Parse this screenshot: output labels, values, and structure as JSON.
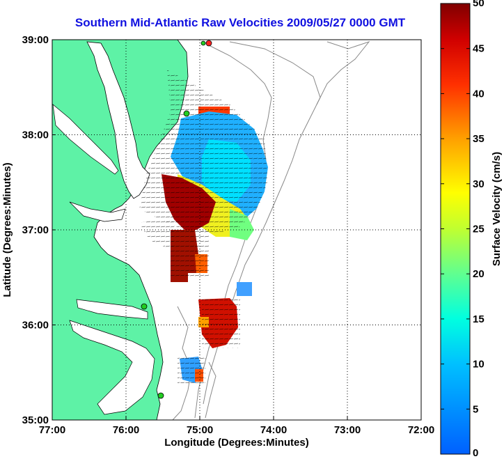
{
  "chart_data": {
    "type": "heatmap",
    "title": "Southern Mid-Atlantic Raw Velocities 2009/05/27 0000 GMT",
    "xlabel": "Longitude (Degrees:Minutes)",
    "ylabel": "Latitude (Degrees:Minutes)",
    "x_ticks": [
      "77:00",
      "76:00",
      "75:00",
      "74:00",
      "73:00",
      "72:00"
    ],
    "y_ticks": [
      "39:00",
      "38:00",
      "37:00",
      "36:00",
      "35:00"
    ],
    "xlim": [
      -77,
      -72
    ],
    "ylim": [
      35,
      39
    ],
    "grid": true,
    "colorbar": {
      "label": "Surface Velocity (cm/s)",
      "ticks": [
        "50",
        "45",
        "40",
        "35",
        "30",
        "25",
        "20",
        "15",
        "10",
        "5",
        "0"
      ],
      "range": [
        0,
        50
      ]
    },
    "colors": {
      "land": "#5ef2a6",
      "title": "#1010e0",
      "station_green": "#22cc22",
      "station_red": "#ff2020"
    },
    "velocity_regions": [
      {
        "lon": -75.3,
        "lat": 37.25,
        "speed": 48
      },
      {
        "lon": -74.85,
        "lat": 37.95,
        "speed": 12
      },
      {
        "lon": -74.5,
        "lat": 37.55,
        "speed": 10
      },
      {
        "lon": -74.8,
        "lat": 37.15,
        "speed": 30
      },
      {
        "lon": -75.1,
        "lat": 36.75,
        "speed": 46
      },
      {
        "lon": -74.7,
        "lat": 36.0,
        "speed": 44
      },
      {
        "lon": -75.0,
        "lat": 35.6,
        "speed": 10
      }
    ]
  }
}
